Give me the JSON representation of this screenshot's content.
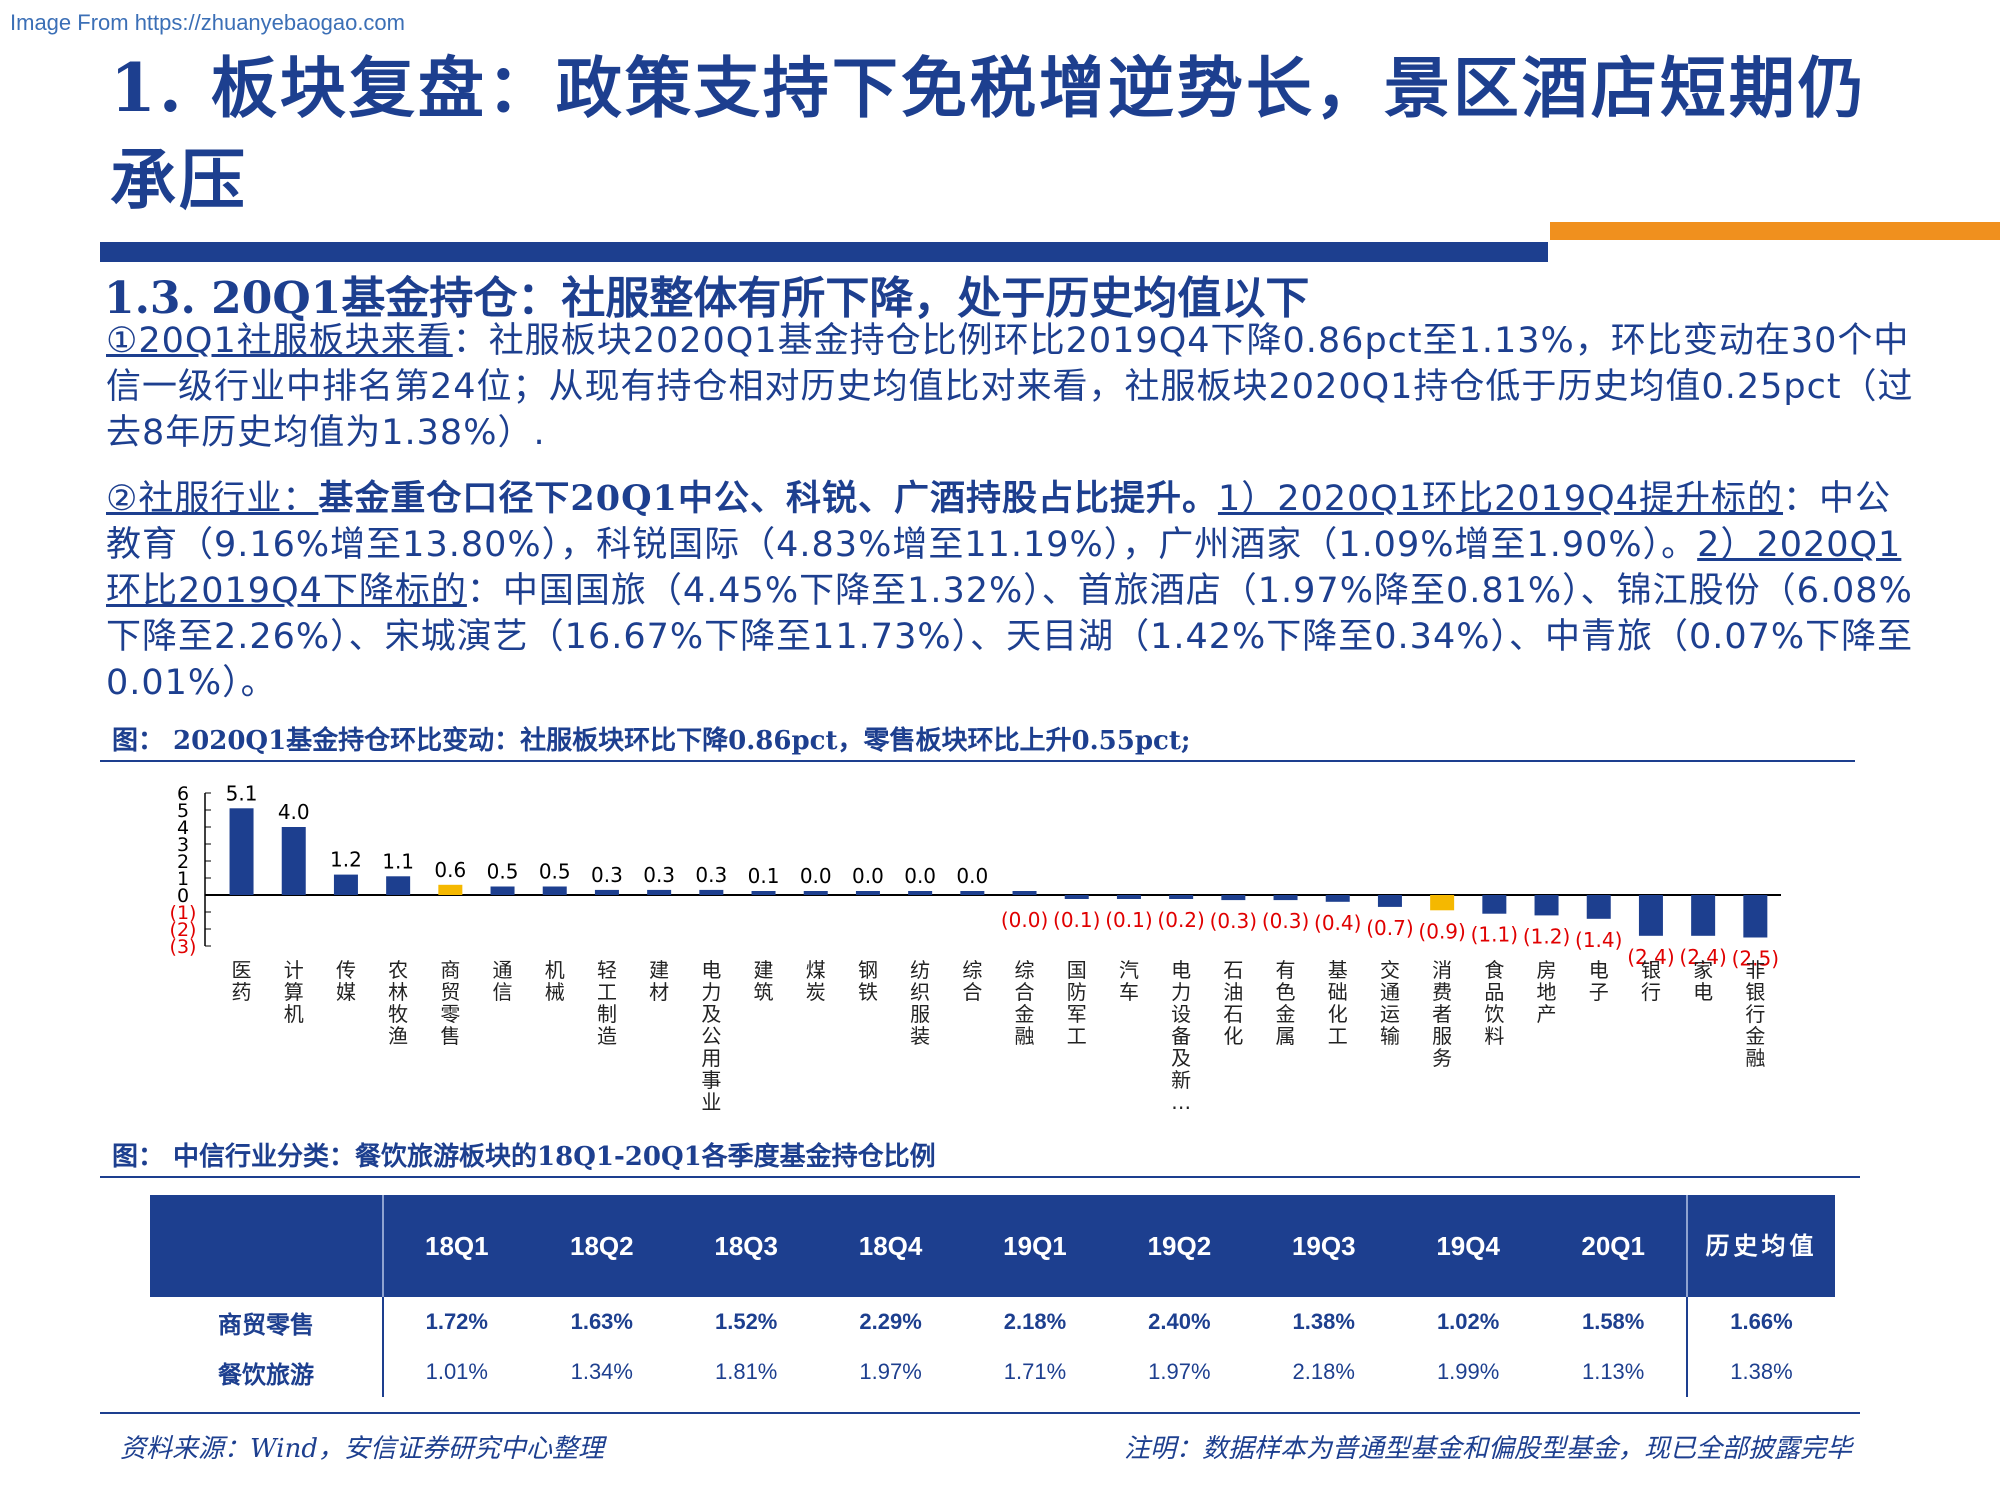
{
  "watermark": "Image From https://zhuanyebaogao.com",
  "title": "1. 板块复盘：政策支持下免税增逆势长，景区酒店短期仍承压",
  "subtitle": "1.3. 20Q1基金持仓：社服整体有所下降，处于历史均值以下",
  "para1": {
    "lead": "①20Q1社服板块来看",
    "body": "：社服板块2020Q1基金持仓比例环比2019Q4下降0.86pct至1.13%，环比变动在30个中信一级行业中排名第24位；从现有持仓相对历史均值比对来看，社服板块2020Q1持仓低于历史均值0.25pct（过去8年历史均值为1.38%）."
  },
  "para2": {
    "lead": "②社服行业：",
    "bold": "基金重仓口径下20Q1中公、科锐、广酒持股占比提升。",
    "up_label": "1）2020Q1环比2019Q4提升标的",
    "up_body": "：中公教育（9.16%增至13.80%），科锐国际（4.83%增至11.19%），广州酒家（1.09%增至1.90%）。",
    "down_label": "2）2020Q1环比2019Q4下降标的",
    "down_body": "：中国国旅（4.45%下降至1.32%）、首旅酒店（1.97%降至0.81%）、锦江股份（6.08%下降至2.26%）、宋城演艺（16.67%下降至11.73%）、天目湖（1.42%下降至0.34%）、中青旅（0.07%下降至0.01%）。"
  },
  "fig1_caption": "图： 2020Q1基金持仓环比变动：社服板块环比下降0.86pct，零售板块环比上升0.55pct;",
  "fig2_caption": "图： 中信行业分类：餐饮旅游板块的18Q1-20Q1各季度基金持仓比例",
  "colors": {
    "primary": "#1d3f8f",
    "highlight": "#f5b800",
    "negative_label": "#e00000",
    "accent": "#f0901e"
  },
  "chart_data": {
    "type": "bar",
    "categories": [
      "医药",
      "计算机",
      "传媒",
      "农林牧渔",
      "商贸零售",
      "通信",
      "机械",
      "轻工制造",
      "建材",
      "电力及公用事业",
      "建筑",
      "煤炭",
      "钢铁",
      "纺织服装",
      "综合",
      "综合金融",
      "国防军工",
      "汽车",
      "电力设备及新…",
      "石油石化",
      "有色金属",
      "基础化工",
      "交通运输",
      "消费者服务",
      "食品饮料",
      "房地产",
      "电子",
      "银行",
      "家电",
      "非银行金融"
    ],
    "values": [
      5.1,
      4.0,
      1.2,
      1.1,
      0.6,
      0.5,
      0.5,
      0.3,
      0.3,
      0.3,
      0.1,
      0.0,
      0.0,
      0.0,
      0.0,
      -0.0,
      -0.1,
      -0.1,
      -0.2,
      -0.3,
      -0.3,
      -0.4,
      -0.7,
      -0.9,
      -1.1,
      -1.2,
      -1.4,
      -2.4,
      -2.4,
      -2.5
    ],
    "data_labels": [
      "5.1",
      "4.0",
      "1.2",
      "1.1",
      "0.6",
      "0.5",
      "0.5",
      "0.3",
      "0.3",
      "0.3",
      "0.1",
      "0.0",
      "0.0",
      "0.0",
      "0.0",
      "(0.0)",
      "(0.1)",
      "(0.1)",
      "(0.2)",
      "(0.3)",
      "(0.3)",
      "(0.4)",
      "(0.7)",
      "(0.9)",
      "(1.1)",
      "(1.2)",
      "(1.4)",
      "(2.4)",
      "(2.4)",
      "(2.5)"
    ],
    "highlighted": [
      "商贸零售",
      "消费者服务"
    ],
    "yticks": [
      "6",
      "5",
      "4",
      "3",
      "2",
      "1",
      "0",
      "(1)",
      "(2)",
      "(3)"
    ],
    "ylim": [
      -3,
      6
    ]
  },
  "table": {
    "headers": [
      "",
      "18Q1",
      "18Q2",
      "18Q3",
      "18Q4",
      "19Q1",
      "19Q2",
      "19Q3",
      "19Q4",
      "20Q1",
      "历史均值"
    ],
    "rows": [
      {
        "name": "商贸零售",
        "values": [
          "1.72%",
          "1.63%",
          "1.52%",
          "2.29%",
          "2.18%",
          "2.40%",
          "1.38%",
          "1.02%",
          "1.58%",
          "1.66%"
        ]
      },
      {
        "name": "餐饮旅游",
        "values": [
          "1.01%",
          "1.34%",
          "1.81%",
          "1.97%",
          "1.71%",
          "1.97%",
          "2.18%",
          "1.99%",
          "1.13%",
          "1.38%"
        ]
      }
    ]
  },
  "footer": {
    "source": "资料来源：Wind，安信证券研究中心整理",
    "note": "注明：数据样本为普通型基金和偏股型基金，现已全部披露完毕"
  }
}
